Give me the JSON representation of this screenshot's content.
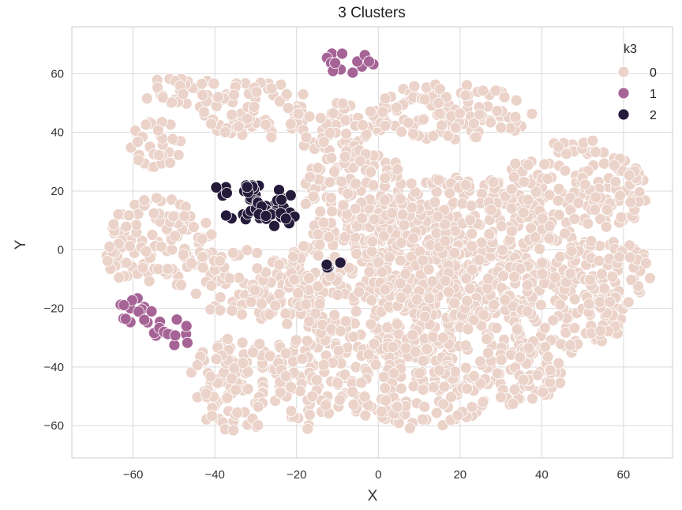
{
  "chart_data": {
    "type": "scatter",
    "title": "3 Clusters",
    "xlabel": "X",
    "ylabel": "Y",
    "xlim": [
      -75,
      72
    ],
    "ylim": [
      -71,
      76
    ],
    "xticks": [
      -60,
      -40,
      -20,
      0,
      20,
      40,
      60
    ],
    "yticks": [
      -60,
      -40,
      -20,
      0,
      20,
      40,
      60
    ],
    "grid": true,
    "legend": {
      "title": "k3",
      "placement": "top-right"
    },
    "series": [
      {
        "name": "0",
        "color": "#ebd3ca",
        "regions": [
          {
            "cx": -30,
            "cy": 48,
            "rx": 14,
            "ry": 10
          },
          {
            "cx": -48,
            "cy": 54,
            "rx": 10,
            "ry": 5
          },
          {
            "cx": -54,
            "cy": 36,
            "rx": 7,
            "ry": 8
          },
          {
            "cx": -10,
            "cy": 42,
            "rx": 12,
            "ry": 9
          },
          {
            "cx": 18,
            "cy": 47,
            "rx": 20,
            "ry": 10
          },
          {
            "cx": 48,
            "cy": 20,
            "rx": 18,
            "ry": 18
          },
          {
            "cx": -54,
            "cy": 2,
            "rx": 14,
            "ry": 16
          },
          {
            "cx": -30,
            "cy": -12,
            "rx": 16,
            "ry": 12
          },
          {
            "cx": -35,
            "cy": -46,
            "rx": 12,
            "ry": 16
          },
          {
            "cx": -16,
            "cy": -40,
            "rx": 9,
            "ry": 22
          },
          {
            "cx": 2,
            "cy": -10,
            "rx": 24,
            "ry": 28
          },
          {
            "cx": 20,
            "cy": 0,
            "rx": 24,
            "ry": 25
          },
          {
            "cx": 40,
            "cy": -20,
            "rx": 22,
            "ry": 16
          },
          {
            "cx": 55,
            "cy": -8,
            "rx": 12,
            "ry": 12
          },
          {
            "cx": 10,
            "cy": -45,
            "rx": 20,
            "ry": 16
          },
          {
            "cx": 35,
            "cy": -42,
            "rx": 10,
            "ry": 12
          },
          {
            "cx": -5,
            "cy": 20,
            "rx": 14,
            "ry": 14
          }
        ]
      },
      {
        "name": "1",
        "color": "#a66496",
        "regions": [
          {
            "cx": -7,
            "cy": 64,
            "rx": 7,
            "ry": 4
          },
          {
            "cx": -59,
            "cy": -21,
            "rx": 5,
            "ry": 5
          },
          {
            "cx": -50,
            "cy": -28,
            "rx": 5,
            "ry": 5
          }
        ]
      },
      {
        "name": "2",
        "color": "#241a3a",
        "regions": [
          {
            "cx": -30,
            "cy": 16,
            "rx": 10,
            "ry": 7
          },
          {
            "cx": -36,
            "cy": 21,
            "rx": 6,
            "ry": 2
          },
          {
            "cx": -24,
            "cy": 10,
            "rx": 4,
            "ry": 4
          },
          {
            "cx": -11,
            "cy": -5,
            "rx": 2,
            "ry": 2
          }
        ]
      }
    ]
  }
}
